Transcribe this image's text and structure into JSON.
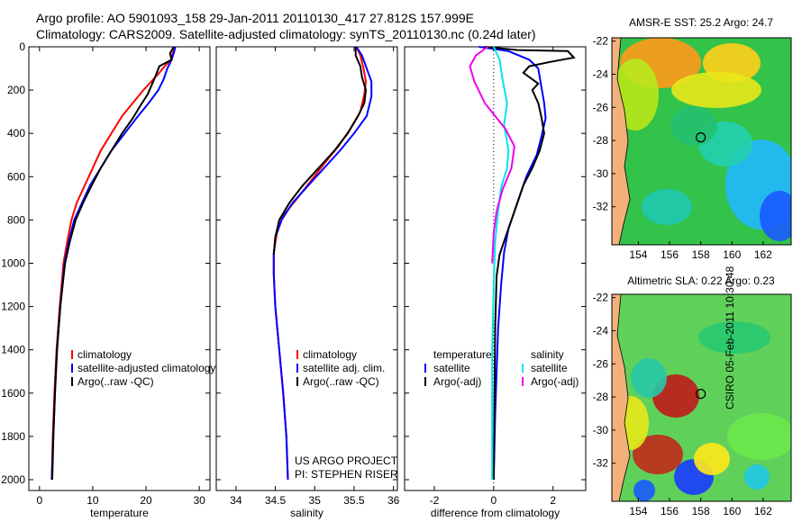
{
  "header": {
    "line1": "Argo profile: AO 5901093_158 29-Jan-2011 20110130_417 27.812S 157.999E",
    "line2": "Climatology: CARS2009. Satellite-adjusted climatology: synTS_20110130.nc (0.24d later)"
  },
  "credits": {
    "project": "US ARGO PROJECT",
    "pi": "PI: STEPHEN RISER",
    "csiro": "CSIRO 05-Feb-2011 10:30:48"
  },
  "colors": {
    "climatology": "#ff0000",
    "satellite": "#0000ff",
    "argo": "#000000",
    "satellite_salinity": "#00e5ee",
    "argo_salinity": "#ee00ee"
  },
  "chart_data": [
    {
      "type": "line",
      "id": "temperature",
      "xlabel": "temperature",
      "ylabel": "",
      "xlim": [
        -2,
        32
      ],
      "ylim": [
        2050,
        0
      ],
      "xticks": [
        0,
        10,
        20,
        30
      ],
      "yticks": [
        0,
        200,
        400,
        600,
        800,
        1000,
        1200,
        1400,
        1600,
        1800,
        2000
      ],
      "legend": [
        "climatology",
        "satellite-adjusted climatology",
        "Argo(..raw -QC)"
      ],
      "series": [
        {
          "name": "climatology",
          "color": "#ff0000",
          "points": [
            [
              25.5,
              0
            ],
            [
              25,
              30
            ],
            [
              24.7,
              60
            ],
            [
              23.5,
              90
            ],
            [
              22.5,
              120
            ],
            [
              21,
              160
            ],
            [
              19.5,
              200
            ],
            [
              17.5,
              260
            ],
            [
              15.5,
              320
            ],
            [
              13.5,
              400
            ],
            [
              11.5,
              480
            ],
            [
              10,
              560
            ],
            [
              8.5,
              640
            ],
            [
              7,
              720
            ],
            [
              6,
              800
            ],
            [
              5.2,
              900
            ],
            [
              4.5,
              1000
            ],
            [
              3.8,
              1200
            ],
            [
              3.2,
              1400
            ],
            [
              2.8,
              1600
            ],
            [
              2.5,
              1800
            ],
            [
              2.3,
              2000
            ]
          ]
        },
        {
          "name": "satellite-adjusted climatology",
          "color": "#0000ff",
          "points": [
            [
              25.5,
              0
            ],
            [
              25.2,
              30
            ],
            [
              24.8,
              60
            ],
            [
              24,
              100
            ],
            [
              23.3,
              150
            ],
            [
              22.3,
              200
            ],
            [
              20.5,
              260
            ],
            [
              18.5,
              320
            ],
            [
              16,
              400
            ],
            [
              13.5,
              480
            ],
            [
              11.5,
              560
            ],
            [
              9.5,
              640
            ],
            [
              8,
              720
            ],
            [
              6.5,
              800
            ],
            [
              5.5,
              900
            ],
            [
              4.7,
              1000
            ],
            [
              3.9,
              1200
            ],
            [
              3.3,
              1400
            ],
            [
              2.9,
              1600
            ],
            [
              2.6,
              1800
            ],
            [
              2.3,
              2000
            ]
          ]
        },
        {
          "name": "Argo(..raw -QC)",
          "color": "#000000",
          "points": [
            [
              25.2,
              0
            ],
            [
              24.5,
              30
            ],
            [
              24.8,
              60
            ],
            [
              22.5,
              90
            ],
            [
              21.7,
              140
            ],
            [
              21,
              180
            ],
            [
              20.3,
              220
            ],
            [
              19,
              270
            ],
            [
              17.5,
              330
            ],
            [
              15.5,
              400
            ],
            [
              13.5,
              480
            ],
            [
              11.5,
              560
            ],
            [
              9.8,
              640
            ],
            [
              8.2,
              720
            ],
            [
              6.8,
              800
            ],
            [
              5.7,
              900
            ],
            [
              4.8,
              1000
            ],
            [
              3.9,
              1200
            ],
            [
              3.3,
              1400
            ],
            [
              2.9,
              1600
            ],
            [
              2.6,
              1800
            ],
            [
              2.4,
              2000
            ]
          ]
        }
      ]
    },
    {
      "type": "line",
      "id": "salinity",
      "xlabel": "salinity",
      "ylabel": "",
      "xlim": [
        33.75,
        36.05
      ],
      "ylim": [
        2050,
        0
      ],
      "xticks": [
        34,
        34.5,
        35,
        35.5,
        36
      ],
      "xtick_labels": [
        "34",
        "34.5",
        "35",
        "35.5",
        "36"
      ],
      "legend": [
        "climatology",
        "satellite adj. clim.",
        "Argo(..raw -QC)"
      ],
      "series": [
        {
          "name": "climatology",
          "color": "#ff0000",
          "points": [
            [
              35.53,
              0
            ],
            [
              35.58,
              40
            ],
            [
              35.62,
              100
            ],
            [
              35.65,
              160
            ],
            [
              35.63,
              220
            ],
            [
              35.58,
              300
            ],
            [
              35.45,
              380
            ],
            [
              35.3,
              460
            ],
            [
              35.12,
              540
            ],
            [
              34.95,
              620
            ],
            [
              34.78,
              700
            ],
            [
              34.6,
              780
            ],
            [
              34.52,
              860
            ],
            [
              34.48,
              950
            ],
            [
              34.48,
              1050
            ],
            [
              34.5,
              1200
            ],
            [
              34.55,
              1400
            ],
            [
              34.6,
              1600
            ],
            [
              34.64,
              1800
            ],
            [
              34.66,
              2000
            ]
          ]
        },
        {
          "name": "satellite adj. clim.",
          "color": "#0000ff",
          "points": [
            [
              35.53,
              0
            ],
            [
              35.6,
              40
            ],
            [
              35.66,
              100
            ],
            [
              35.72,
              160
            ],
            [
              35.72,
              230
            ],
            [
              35.66,
              320
            ],
            [
              35.5,
              400
            ],
            [
              35.32,
              480
            ],
            [
              35.12,
              560
            ],
            [
              34.92,
              640
            ],
            [
              34.72,
              720
            ],
            [
              34.58,
              800
            ],
            [
              34.5,
              880
            ],
            [
              34.48,
              960
            ],
            [
              34.48,
              1050
            ],
            [
              34.5,
              1200
            ],
            [
              34.55,
              1400
            ],
            [
              34.6,
              1600
            ],
            [
              34.64,
              1800
            ],
            [
              34.66,
              2000
            ]
          ]
        },
        {
          "name": "Argo(..raw -QC)",
          "color": "#000000",
          "points": [
            [
              35.52,
              0
            ],
            [
              35.52,
              40
            ],
            [
              35.58,
              90
            ],
            [
              35.6,
              140
            ],
            [
              35.65,
              200
            ],
            [
              35.63,
              260
            ],
            [
              35.55,
              320
            ],
            [
              35.42,
              400
            ],
            [
              35.25,
              480
            ],
            [
              35.05,
              560
            ],
            [
              34.85,
              640
            ],
            [
              34.68,
              720
            ],
            [
              34.55,
              800
            ],
            [
              34.5,
              880
            ],
            [
              34.48,
              960
            ]
          ]
        }
      ]
    },
    {
      "type": "line",
      "id": "difference",
      "xlabel": "difference from climatology",
      "ylabel": "",
      "xlim": [
        -3,
        3.1
      ],
      "ylim": [
        2050,
        0
      ],
      "xticks": [
        -2,
        0,
        2
      ],
      "legend_temperature": {
        "heading": "temperature",
        "items": [
          "satellite",
          "Argo(-adj)"
        ]
      },
      "legend_salinity": {
        "heading": "salinity",
        "items": [
          "satellite",
          "Argo(-adj)"
        ]
      },
      "series": [
        {
          "name": "temperature satellite",
          "color": "#0000ff",
          "points": [
            [
              -0.5,
              0
            ],
            [
              0.5,
              20
            ],
            [
              1.2,
              60
            ],
            [
              1.5,
              100
            ],
            [
              1.6,
              180
            ],
            [
              1.7,
              260
            ],
            [
              1.75,
              330
            ],
            [
              1.6,
              420
            ],
            [
              1.45,
              500
            ],
            [
              1.1,
              600
            ],
            [
              0.9,
              680
            ],
            [
              0.7,
              760
            ],
            [
              0.5,
              840
            ],
            [
              0.35,
              950
            ],
            [
              0.25,
              1100
            ],
            [
              0.15,
              1300
            ],
            [
              0.1,
              1500
            ],
            [
              0.05,
              1700
            ],
            [
              0,
              2000
            ]
          ]
        },
        {
          "name": "temperature Argo(-adj)",
          "color": "#000000",
          "points": [
            [
              -0.3,
              0
            ],
            [
              0.8,
              15
            ],
            [
              2.5,
              20
            ],
            [
              2.7,
              50
            ],
            [
              1.9,
              70
            ],
            [
              1.2,
              90
            ],
            [
              1.0,
              120
            ],
            [
              1.3,
              150
            ],
            [
              1.5,
              170
            ],
            [
              1.3,
              200
            ],
            [
              1.5,
              260
            ],
            [
              1.6,
              320
            ],
            [
              1.7,
              400
            ],
            [
              1.55,
              480
            ],
            [
              1.3,
              560
            ],
            [
              1.0,
              640
            ],
            [
              0.8,
              720
            ],
            [
              0.6,
              800
            ],
            [
              0.4,
              880
            ],
            [
              0.2,
              960
            ],
            [
              0.1,
              1060
            ],
            [
              0.05,
              1300
            ],
            [
              0,
              2000
            ]
          ]
        },
        {
          "name": "salinity satellite",
          "color": "#00e5ee",
          "points": [
            [
              0,
              0
            ],
            [
              0.2,
              60
            ],
            [
              0.3,
              150
            ],
            [
              0.45,
              260
            ],
            [
              0.35,
              360
            ],
            [
              0.5,
              480
            ],
            [
              0.45,
              560
            ],
            [
              0.25,
              650
            ],
            [
              0.15,
              760
            ],
            [
              0.05,
              900
            ],
            [
              0,
              1100
            ],
            [
              -0.05,
              1400
            ],
            [
              -0.05,
              1700
            ],
            [
              -0.05,
              2000
            ]
          ]
        },
        {
          "name": "salinity Argo(-adj)",
          "color": "#ee00ee",
          "points": [
            [
              -0.2,
              0
            ],
            [
              -0.6,
              40
            ],
            [
              -0.8,
              90
            ],
            [
              -0.65,
              160
            ],
            [
              -0.3,
              260
            ],
            [
              0.4,
              380
            ],
            [
              0.7,
              460
            ],
            [
              0.6,
              560
            ],
            [
              0.3,
              660
            ],
            [
              0.1,
              760
            ],
            [
              0,
              860
            ],
            [
              -0.05,
              1000
            ]
          ]
        }
      ]
    }
  ],
  "maps": [
    {
      "id": "sst",
      "title": "AMSR-E SST: 25.2 Argo: 24.7",
      "xticks": [
        154,
        156,
        158,
        160,
        162
      ],
      "yticks": [
        -22,
        -24,
        -26,
        -28,
        -30,
        -32
      ],
      "xlim": [
        152.3,
        163.8
      ],
      "ylim": [
        -34.3,
        -21.8
      ],
      "argo_position": [
        157.999,
        -27.812
      ]
    },
    {
      "id": "sla",
      "title": "Altimetric SLA: 0.22 Argo: 0.23",
      "xticks": [
        154,
        156,
        158,
        160,
        162
      ],
      "yticks": [
        -22,
        -24,
        -26,
        -28,
        -30,
        -32
      ],
      "xlim": [
        152.3,
        163.8
      ],
      "ylim": [
        -34.3,
        -21.8
      ],
      "argo_position": [
        157.999,
        -27.812
      ]
    }
  ]
}
